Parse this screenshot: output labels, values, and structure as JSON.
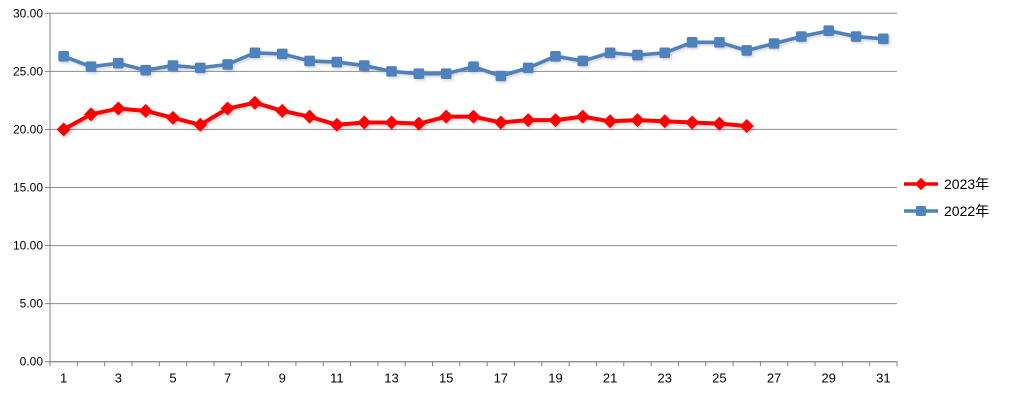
{
  "chart_data": {
    "type": "line",
    "title": "",
    "xlabel": "",
    "ylabel": "",
    "x": [
      1,
      2,
      3,
      4,
      5,
      6,
      7,
      8,
      9,
      10,
      11,
      12,
      13,
      14,
      15,
      16,
      17,
      18,
      19,
      20,
      21,
      22,
      23,
      24,
      25,
      26,
      27,
      28,
      29,
      30,
      31
    ],
    "ylim": [
      0,
      30
    ],
    "y_tick_step": 5,
    "grid": true,
    "legend_position": "right",
    "series": [
      {
        "name": "2023年",
        "color": "#FF0000",
        "marker": "diamond",
        "values": [
          20.0,
          21.3,
          21.8,
          21.6,
          21.0,
          20.4,
          21.8,
          22.3,
          21.6,
          21.1,
          20.4,
          20.6,
          20.6,
          20.5,
          21.1,
          21.1,
          20.6,
          20.8,
          20.8,
          21.1,
          20.7,
          20.8,
          20.7,
          20.6,
          20.5,
          20.3
        ]
      },
      {
        "name": "2022年",
        "color": "#4F81BD",
        "marker": "square",
        "values": [
          26.3,
          25.4,
          25.7,
          25.1,
          25.5,
          25.3,
          25.6,
          26.6,
          26.5,
          25.9,
          25.8,
          25.5,
          25.0,
          24.8,
          24.8,
          25.4,
          24.6,
          25.3,
          26.3,
          25.9,
          26.6,
          26.4,
          26.6,
          27.5,
          27.5,
          26.8,
          27.4,
          28.0,
          28.5,
          28.0,
          27.8
        ]
      }
    ]
  },
  "axes": {
    "y_tick_labels": [
      "30.00",
      "25.00",
      "20.00",
      "15.00",
      "10.00",
      "5.00",
      "0.00"
    ],
    "x_tick_labels": [
      "1",
      "3",
      "5",
      "7",
      "9",
      "11",
      "13",
      "15",
      "17",
      "19",
      "21",
      "23",
      "25",
      "27",
      "29",
      "31"
    ]
  },
  "colors": {
    "grid": "#8C8C8C",
    "axis": "#808080",
    "label": "#000000",
    "background": "#FFFFFF",
    "series_2023": "#FF0000",
    "series_2022": "#4F81BD"
  }
}
